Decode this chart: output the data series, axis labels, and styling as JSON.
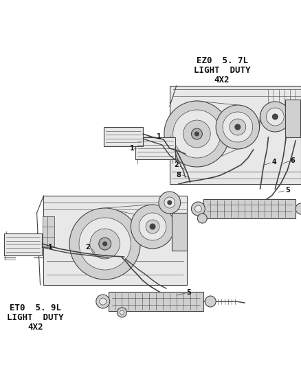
{
  "background_color": "#ffffff",
  "fig_width": 4.38,
  "fig_height": 5.33,
  "dpi": 100,
  "label_ez0": "EZ0  5. 7L\nLIGHT  DUTY\n4X2",
  "label_et0": "ET0  5. 9L\nLIGHT  DUTY\n4X2",
  "line_color": "#444444",
  "text_color": "#111111",
  "light_fill": "#e8e8e8",
  "mid_fill": "#d0d0d0",
  "dark_fill": "#b0b0b0"
}
